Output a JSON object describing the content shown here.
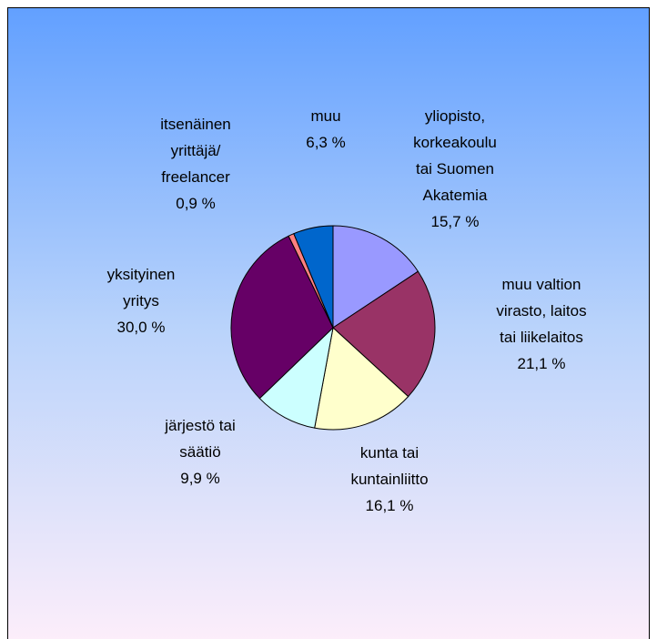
{
  "chart_data": {
    "type": "pie",
    "categories": [
      "yliopisto,\nkorkeakoulu\ntai Suomen\nAkatemia",
      "muu valtion\nvirasto, laitos\ntai liikelaitos",
      "kunta tai\nkuntainliitto",
      "järjestö tai\nsäätiö",
      "yksityinen\nyritys",
      "itsenäinen\nyrittäjä/\nfreelancer",
      "muu"
    ],
    "values": [
      15.7,
      21.1,
      16.1,
      9.9,
      30.0,
      0.9,
      6.3
    ],
    "value_labels": [
      "15,7 %",
      "21,1 %",
      "16,1 %",
      "9,9 %",
      "30,0 %",
      "0,9 %",
      "6,3 %"
    ],
    "colors": [
      "#9999ff",
      "#993366",
      "#ffffcc",
      "#ccffff",
      "#660066",
      "#ff8080",
      "#0066cc"
    ]
  }
}
